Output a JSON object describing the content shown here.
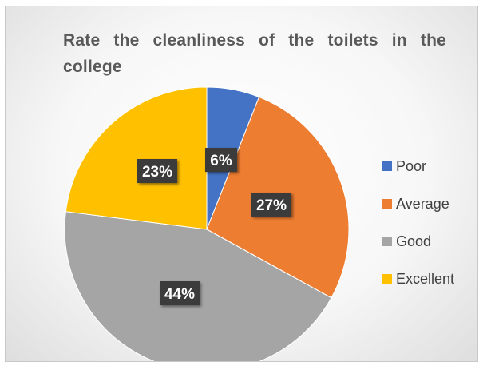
{
  "chart_data": {
    "type": "pie",
    "title": "Rate the cleanliness of the toilets in the college",
    "categories": [
      "Poor",
      "Average",
      "Good",
      "Excellent"
    ],
    "values": [
      6,
      27,
      44,
      23
    ],
    "value_labels": [
      "6%",
      "27%",
      "44%",
      "23%"
    ],
    "colors": [
      "#4472C4",
      "#ED7D31",
      "#A5A5A5",
      "#FFC000"
    ],
    "start_angle_deg": 0,
    "direction": "clockwise",
    "legend_position": "right",
    "data_label_style": "dark box, white bold text"
  }
}
